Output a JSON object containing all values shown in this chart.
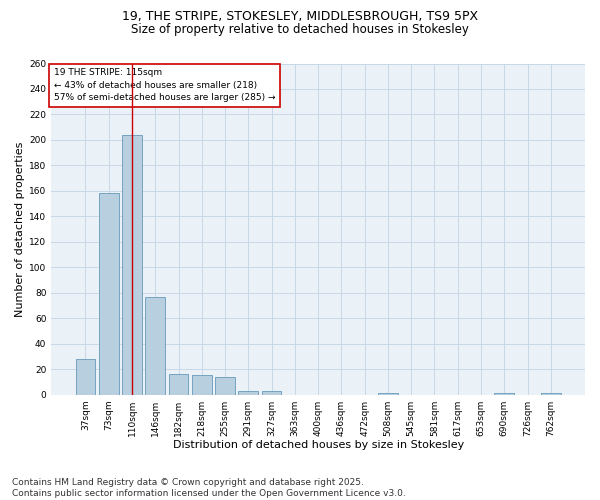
{
  "title_line1": "19, THE STRIPE, STOKESLEY, MIDDLESBROUGH, TS9 5PX",
  "title_line2": "Size of property relative to detached houses in Stokesley",
  "xlabel": "Distribution of detached houses by size in Stokesley",
  "ylabel": "Number of detached properties",
  "categories": [
    "37sqm",
    "73sqm",
    "110sqm",
    "146sqm",
    "182sqm",
    "218sqm",
    "255sqm",
    "291sqm",
    "327sqm",
    "363sqm",
    "400sqm",
    "436sqm",
    "472sqm",
    "508sqm",
    "545sqm",
    "581sqm",
    "617sqm",
    "653sqm",
    "690sqm",
    "726sqm",
    "762sqm"
  ],
  "values": [
    28,
    158,
    204,
    77,
    16,
    15,
    14,
    3,
    3,
    0,
    0,
    0,
    0,
    1,
    0,
    0,
    0,
    0,
    1,
    0,
    1
  ],
  "bar_color": "#b8cfe0",
  "bar_edge_color": "#6699bb",
  "vline_x": 2,
  "vline_color": "#cc0000",
  "annotation_text": "19 THE STRIPE: 115sqm\n← 43% of detached houses are smaller (218)\n57% of semi-detached houses are larger (285) →",
  "annotation_box_color": "#ffffff",
  "annotation_box_edge": "#cc0000",
  "annotation_fontsize": 6.5,
  "ylim": [
    0,
    260
  ],
  "yticks": [
    0,
    20,
    40,
    60,
    80,
    100,
    120,
    140,
    160,
    180,
    200,
    220,
    240,
    260
  ],
  "grid_color": "#c8d8e8",
  "background_color": "#eaf2f8",
  "footer_text": "Contains HM Land Registry data © Crown copyright and database right 2025.\nContains public sector information licensed under the Open Government Licence v3.0.",
  "title_fontsize": 9,
  "subtitle_fontsize": 8.5,
  "xlabel_fontsize": 8,
  "ylabel_fontsize": 8,
  "tick_fontsize": 6.5,
  "footer_fontsize": 6.5
}
